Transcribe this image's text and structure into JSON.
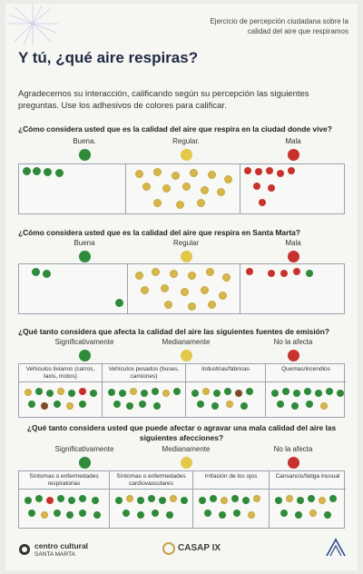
{
  "header": {
    "note": "Ejercicio de percepción ciudadana sobre la calidad del aire que respiramos",
    "title": "Y tú, ¿qué aire respiras?",
    "intro": "Agradecemos su interacción, calificando según su percepción las siguientes preguntas. Use los adhesivos de colores para calificar."
  },
  "colors": {
    "green": "#2f8a3a",
    "yellow": "#e3c84a",
    "red": "#c8322c"
  },
  "questions": [
    {
      "text": "¿Cómo considera usted que es la calidad del aire que respira en la ciudad donde vive?",
      "options": [
        "Buena.",
        "Regular.",
        "Mala"
      ]
    },
    {
      "text": "¿Cómo considera usted que es la calidad del aire que respira en Santa Marta?",
      "options": [
        "Buena",
        "Regular",
        "Mala"
      ]
    },
    {
      "text": "¿Qué tanto considera que afecta la calidad del aire las siguientes fuentes de emisión?",
      "options": [
        "Significativamente",
        "Medianamente",
        "No la afecta"
      ],
      "sources": [
        "Vehículos livianos (carros, taxis, motos)",
        "Vehículos pesados (buses, camiones)",
        "Industrias/fábricas",
        "Quemas/incendios"
      ]
    },
    {
      "text": "¿Qué tanto considera usted que puede afectar o agravar una mala calidad del aire las siguientes afecciones?",
      "options": [
        "Significativamente",
        "Medianamente",
        "No la afecta"
      ],
      "conditions": [
        "Síntomas o enfermedades respiratorias",
        "Síntomas o enfermedades cardiovasculares",
        "Irritación de los ojos",
        "Cansancio/fatiga inusual"
      ]
    }
  ],
  "footer": {
    "org1": "centro cultural",
    "org1_sub": "SANTA MARTA",
    "org2": "CASAP IX"
  }
}
